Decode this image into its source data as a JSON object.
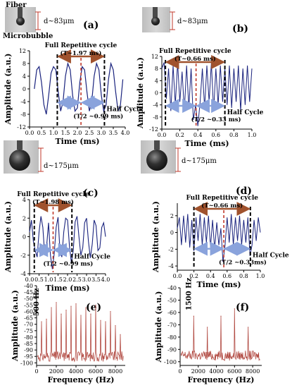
{
  "chart_data": [
    {
      "panel": "(a)",
      "type": "line",
      "inset": {
        "fiber_label": "Fiber",
        "bubble_label": "Microbubble",
        "d_label": "d~83μm"
      },
      "ylabel": "Amplitude (a.u.)",
      "xlabel": "Time (ms)",
      "xticks": [
        "0.0",
        "0.5",
        "1.0",
        "1.5",
        "2.0",
        "2.5",
        "3.0",
        "3.5",
        "4.0"
      ],
      "yticks": [
        "12",
        "8",
        "4",
        "0",
        "-4",
        "-8",
        "-12"
      ],
      "xlim": [
        0,
        4
      ],
      "ylim": [
        -12,
        12
      ],
      "cycle_label": "Full Repetitive cycle",
      "t_label": "(T~1.97 ms)",
      "half_label": "Half Cycle",
      "half_t_label": "(T/2 ~0.99 ms)",
      "cycle_start": 1.16,
      "cycle_mid": 2.15,
      "cycle_end": 3.13,
      "series": [
        {
          "x": [
            0.2,
            0.3,
            0.4,
            0.5,
            0.6,
            0.7,
            0.8,
            0.9,
            1.0,
            1.1,
            1.2,
            1.3,
            1.4,
            1.5,
            1.6,
            1.7,
            1.8,
            1.9,
            2.0,
            2.1,
            2.2,
            2.3,
            2.4,
            2.5,
            2.6,
            2.7,
            2.8,
            2.9,
            3.0,
            3.1,
            3.2,
            3.3,
            3.4,
            3.5,
            3.6,
            3.7,
            3.8,
            3.9
          ],
          "y": [
            0,
            6,
            7,
            2,
            -5,
            -8,
            -2,
            5,
            7,
            6,
            -1,
            -7,
            -4,
            4,
            8,
            6,
            -2,
            -7,
            -6,
            2,
            7,
            6,
            -1,
            -7,
            -4,
            4,
            8,
            6,
            -2,
            -7,
            -5,
            3,
            8,
            6,
            -1,
            -7,
            -5,
            3
          ]
        }
      ]
    },
    {
      "panel": "(b)",
      "type": "line",
      "inset": {
        "d_label": "d~83μm"
      },
      "ylabel": "Amplitude (a.u.)",
      "xlabel": "Time (ms)",
      "xticks": [
        "0.0",
        "0.2",
        "0.4",
        "0.6",
        "0.8",
        "1.0"
      ],
      "yticks": [
        "12",
        "8",
        "4",
        "0",
        "-4",
        "-8",
        "-12"
      ],
      "xlim": [
        0,
        1
      ],
      "ylim": [
        -12,
        12
      ],
      "cycle_label": "Full Repetitive cycle",
      "t_label": "(T~0.66 ms)",
      "half_label": "Half Cycle",
      "half_t_label": "(T/2 ~0.33 ms)",
      "cycle_start": 0.04,
      "cycle_mid": 0.38,
      "cycle_end": 0.7,
      "series": [
        {
          "x": [
            0.0,
            0.025,
            0.05,
            0.075,
            0.1,
            0.125,
            0.15,
            0.175,
            0.2,
            0.225,
            0.25,
            0.275,
            0.3,
            0.325,
            0.35,
            0.375,
            0.4,
            0.425,
            0.45,
            0.475,
            0.5,
            0.525,
            0.55,
            0.575,
            0.6,
            0.625,
            0.65,
            0.675,
            0.7,
            0.725,
            0.75,
            0.775,
            0.8,
            0.825,
            0.85,
            0.875,
            0.9,
            0.925,
            0.95,
            0.975,
            1.0
          ],
          "y": [
            8,
            10,
            -2,
            8,
            -6,
            9,
            -4,
            10,
            -3,
            7,
            -6,
            9,
            -5,
            8,
            -9,
            -4,
            -11,
            -3,
            8,
            -5,
            9,
            -3,
            10,
            -6,
            8,
            -4,
            9,
            -3,
            8,
            -4,
            9,
            -5,
            8,
            -3,
            9,
            -6,
            8,
            -4,
            9,
            -3,
            8
          ]
        }
      ]
    },
    {
      "panel": "(c)",
      "type": "line",
      "inset": {
        "d_label": "d~175μm"
      },
      "ylabel": "Amplitude (a.u.)",
      "xlabel": "Time (ms)",
      "xticks": [
        "0.0",
        "0.5",
        "1.0",
        "1.5",
        "2.0",
        "2.5",
        "3.0",
        "3.5",
        "4.0"
      ],
      "yticks": [
        "4",
        "2",
        "0",
        "-2",
        "-4"
      ],
      "xlim": [
        0,
        4
      ],
      "ylim": [
        -4,
        4
      ],
      "cycle_label": "Full Repetitive cycle",
      "t_label": "(T~1.98 ms)",
      "half_label": "Half Cycle",
      "half_t_label": "(T/2 ~0.99 ms)",
      "cycle_start": 0.25,
      "cycle_mid": 1.24,
      "cycle_end": 2.23,
      "series": [
        {
          "x": [
            0.0,
            0.1,
            0.2,
            0.3,
            0.4,
            0.5,
            0.6,
            0.7,
            0.8,
            0.9,
            1.0,
            1.1,
            1.2,
            1.3,
            1.4,
            1.5,
            1.6,
            1.7,
            1.8,
            1.9,
            2.0,
            2.1,
            2.2,
            2.3,
            2.4,
            2.5,
            2.6,
            2.7,
            2.8,
            2.9,
            3.0,
            3.1,
            3.2,
            3.3,
            3.4,
            3.5,
            3.6,
            3.7,
            3.8,
            3.9,
            4.0
          ],
          "y": [
            0.5,
            1.8,
            -0.5,
            -1.5,
            -2.2,
            0.5,
            2.2,
            1.0,
            -2.0,
            -1.0,
            1.5,
            -2.0,
            -3.5,
            -1.8,
            1.0,
            2.1,
            -1.5,
            -2.2,
            0.5,
            2.0,
            1.8,
            -1.0,
            -2.8,
            -1.5,
            1.6,
            2.2,
            0.0,
            -2.0,
            -1.2,
            1.5,
            2.0,
            -0.5,
            -2.3,
            -0.8,
            1.8,
            1.2,
            -1.5,
            -1.2,
            1.0,
            1.5,
            0.0
          ]
        }
      ]
    },
    {
      "panel": "(d)",
      "type": "line",
      "inset": {
        "d_label": "d~175μm"
      },
      "ylabel": "Amplitude (a.u.)",
      "xlabel": "Time (ms)",
      "xticks": [
        "0.0",
        "0.2",
        "0.4",
        "0.6",
        "0.8",
        "1.0"
      ],
      "yticks": [
        "2",
        "0",
        "-2",
        "-4"
      ],
      "xlim": [
        0,
        1
      ],
      "ylim": [
        -4.5,
        3.5
      ],
      "cycle_label": "Full Repetitive cycle",
      "t_label": "(T~0.66 ms)",
      "half_label": "Half Cycle",
      "half_t_label": "(T/2 ~0.33ms)",
      "cycle_start": 0.2,
      "cycle_mid": 0.56,
      "cycle_end": 0.88,
      "series": [
        {
          "x": [
            0.0,
            0.025,
            0.05,
            0.075,
            0.1,
            0.125,
            0.15,
            0.175,
            0.2,
            0.225,
            0.25,
            0.275,
            0.3,
            0.325,
            0.35,
            0.375,
            0.4,
            0.425,
            0.45,
            0.475,
            0.5,
            0.525,
            0.55,
            0.575,
            0.6,
            0.625,
            0.65,
            0.675,
            0.7,
            0.725,
            0.75,
            0.775,
            0.8,
            0.825,
            0.85,
            0.875,
            0.9,
            0.925,
            0.95,
            0.975,
            1.0
          ],
          "y": [
            0.5,
            1.8,
            -1.5,
            2.0,
            -1.2,
            2.2,
            -1.8,
            1.5,
            -2.2,
            1.8,
            -1.0,
            2.2,
            -1.5,
            1.8,
            -1.2,
            2.0,
            -1.8,
            1.5,
            -2.0,
            1.2,
            -1.5,
            0.5,
            -3.5,
            -1.5,
            1.8,
            -1.2,
            2.2,
            -1.5,
            1.8,
            -1.0,
            2.0,
            -1.5,
            1.5,
            -1.2,
            1.8,
            -2.8,
            -1.5,
            1.5,
            -1.0,
            1.8,
            0.0
          ]
        }
      ]
    },
    {
      "panel": "(e)",
      "type": "line",
      "ylabel": "Amplitude (a.u.)",
      "xlabel": "Frequency (Hz)",
      "xticks": [
        "0",
        "2000",
        "4000",
        "6000",
        "8000"
      ],
      "yticks": [
        "-40",
        "-45",
        "-50",
        "-55",
        "-60",
        "-65",
        "-70",
        "-75",
        "-80",
        "-85",
        "-90",
        "-95",
        "-100"
      ],
      "xlim": [
        0,
        9000
      ],
      "ylim": [
        -102,
        -40
      ],
      "annotation": "500 Hz",
      "peaks": [
        {
          "x": 500,
          "y": -68
        },
        {
          "x": 1000,
          "y": -66
        },
        {
          "x": 1500,
          "y": -57
        },
        {
          "x": 2000,
          "y": -53
        },
        {
          "x": 2500,
          "y": -62
        },
        {
          "x": 3000,
          "y": -59
        },
        {
          "x": 3500,
          "y": -56
        },
        {
          "x": 4000,
          "y": -54
        },
        {
          "x": 4500,
          "y": -63
        },
        {
          "x": 5000,
          "y": -57
        },
        {
          "x": 5500,
          "y": -62
        },
        {
          "x": 6000,
          "y": -55
        },
        {
          "x": 6500,
          "y": -67
        },
        {
          "x": 7000,
          "y": -68
        },
        {
          "x": 7500,
          "y": -60
        },
        {
          "x": 8000,
          "y": -71
        },
        {
          "x": 8500,
          "y": -78
        }
      ],
      "floor": -95
    },
    {
      "panel": "(f)",
      "type": "line",
      "ylabel": "Amplitude (a.u.)",
      "xlabel": "Frequency (Hz)",
      "xticks": [
        "0",
        "2000",
        "4000",
        "6000",
        "8000"
      ],
      "yticks": [
        "-40",
        "-50",
        "-60",
        "-70",
        "-80",
        "-90",
        "-100"
      ],
      "xlim": [
        0,
        9000
      ],
      "ylim": [
        -103,
        -40
      ],
      "annotation": "1500 Hz",
      "peaks": [
        {
          "x": 1500,
          "y": -63
        },
        {
          "x": 3000,
          "y": -72
        },
        {
          "x": 4500,
          "y": -63
        },
        {
          "x": 6000,
          "y": -57
        },
        {
          "x": 7500,
          "y": -72
        }
      ],
      "floor": -95
    }
  ]
}
